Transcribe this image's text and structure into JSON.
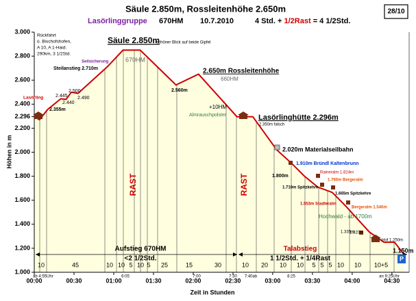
{
  "chart_data": {
    "type": "area",
    "title": "Säule 2.850m, Rossleitenhöhe 2.650m",
    "group": "Lasörlinggruppe",
    "elevation_gain": "670HM",
    "date": "10.7.2010",
    "time_a": "4 Std. +",
    "time_b": "1/2Rast",
    "time_c": "= 4 1/2Std.",
    "page": "28/10",
    "x_label": "Zeit in Stunden",
    "y_label": "Höhen in m",
    "color": "#cc0000",
    "fill": "#ffffe0",
    "grid": false,
    "x": [
      0,
      4,
      10,
      20,
      24,
      28,
      33,
      55,
      67,
      80,
      107,
      124,
      153,
      165,
      183,
      194,
      204,
      214,
      225,
      235,
      253,
      264,
      272,
      279
    ],
    "values": [
      2296,
      2270,
      2355,
      2445,
      2440,
      2500,
      2490,
      2710,
      2850,
      2850,
      2560,
      2650,
      2296,
      2296,
      2020,
      1910,
      1800,
      1710,
      1665,
      1553,
      1335,
      1250,
      1250,
      1150
    ],
    "xlim": [
      0,
      283
    ],
    "xticks": [
      {
        "value": 0,
        "label": "00:00"
      },
      {
        "value": 30,
        "label": "00:30"
      },
      {
        "value": 60,
        "label": "01:00"
      },
      {
        "value": 90,
        "label": "01:30"
      },
      {
        "value": 120,
        "label": "02:00"
      },
      {
        "value": 150,
        "label": "02:30"
      },
      {
        "value": 180,
        "label": "03:00"
      },
      {
        "value": 210,
        "label": "03:30"
      },
      {
        "value": 240,
        "label": "04:00"
      },
      {
        "value": 270,
        "label": "04:30"
      }
    ],
    "ylim": [
      1000,
      3000
    ],
    "yticks": [
      {
        "value": 1000,
        "label": "1.000"
      },
      {
        "value": 1200,
        "label": "1.200"
      },
      {
        "value": 1400,
        "label": "1.400"
      },
      {
        "value": 1600,
        "label": "1.600"
      },
      {
        "value": 1800,
        "label": "1.800"
      },
      {
        "value": 2000,
        "label": "2.000"
      },
      {
        "value": 2200,
        "label": "2.200"
      },
      {
        "value": 2296,
        "label": "2.296"
      },
      {
        "value": 2400,
        "label": "2.400"
      },
      {
        "value": 2600,
        "label": "2.600"
      },
      {
        "value": 2800,
        "label": "2.800"
      },
      {
        "value": 3000,
        "label": "3.000"
      }
    ],
    "annotations": [
      "Rückfahrt",
      "ü. Bischofshofen,",
      "A 10, A 1-Haid:",
      "290km, 3 1/2Std.",
      "Säule 2.850m",
      "schöner Blick auf beide Gipfel",
      "670HM",
      "Seilsicherung",
      "Steilanstieg 2.710m",
      "Lasörling",
      "2.445",
      "2.500",
      "2.440",
      "2.490",
      "2.355m",
      "2.560m",
      "2.650m Rossleitenhöhe",
      "660HM",
      "+10HM",
      "Almrauschpolster",
      "RAST",
      "RAST",
      "Lasörlinghütte 2.296m",
      "2.350m falsch",
      "2.020m Materialseilbahn",
      "1.910m Bründl Kaltenbrunn",
      "Raineralm 1.824m",
      "1.760m Bergeralm",
      "1.800m",
      "1.710m Spitzkehre",
      "1.665m Spitzkehre",
      "1.553m Stadleralm",
      "Bergeralm 1.540m",
      "Hochwald - ab 1700m",
      "1.335m",
      "1.820m",
      "Hof 1.250m",
      "1.150m",
      "P",
      "Aufstieg 670HM",
      "<2 1/2Std.",
      "Talabstieg",
      "1 1/2Std. + 1/4Rast",
      "ab 4:55Uhr",
      "6:05",
      "7:00",
      "7:30",
      "7:40ab",
      "8:25",
      "an 9:25Uhr"
    ],
    "segments": [
      "10",
      "45",
      "10",
      "10",
      "5",
      "10",
      "5",
      "25",
      "15",
      "30",
      "10",
      "20",
      "10",
      "10",
      "5",
      "5",
      "5",
      "10",
      "10",
      "10+5"
    ]
  }
}
